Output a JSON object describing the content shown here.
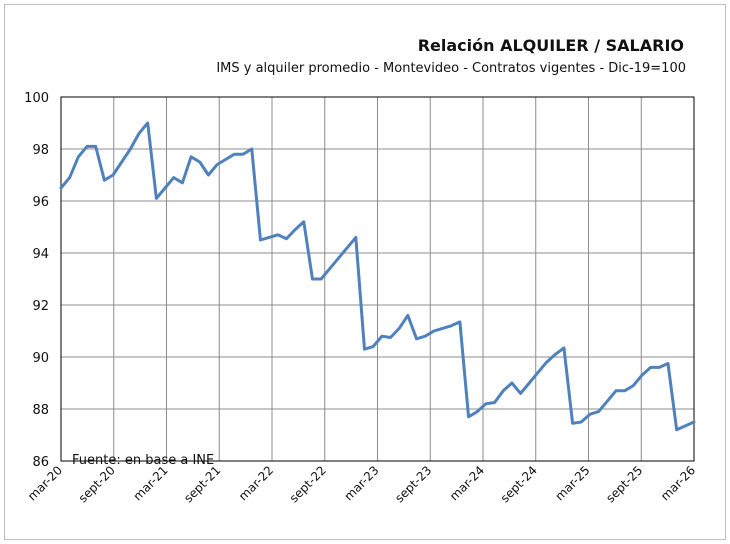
{
  "chart_data": {
    "type": "line",
    "title": "Relación  ALQUILER / SALARIO",
    "subtitle": "IMS y alquiler promedio - Montevideo - Contratos vigentes - Dic-19=100",
    "note": "Fuente: en base a INE",
    "ylim": [
      86,
      100
    ],
    "yticks": [
      "86",
      "88",
      "90",
      "92",
      "94",
      "96",
      "98",
      "100"
    ],
    "xtick_labels": [
      "mar-20",
      "sept-20",
      "mar-21",
      "sept-21",
      "mar-22",
      "sept-22",
      "mar-23",
      "sept-23",
      "mar-24",
      "sept-24",
      "mar-25",
      "sept-25",
      "mar-26"
    ],
    "grid": true,
    "line_color": "#4f81bd",
    "series": [
      {
        "values": [
          96.5,
          96.9,
          97.7,
          98.1,
          98.1,
          96.8,
          97.0,
          97.5,
          98.0,
          98.6,
          99.0,
          96.1,
          96.5,
          96.9,
          96.7,
          97.7,
          97.5,
          97.0,
          97.4,
          97.6,
          97.8,
          97.8,
          98.0,
          94.5,
          94.6,
          94.7,
          94.55,
          94.9,
          95.2,
          93.0,
          93.0,
          93.4,
          93.8,
          94.2,
          94.6,
          90.3,
          90.4,
          90.8,
          90.75,
          91.1,
          91.6,
          90.7,
          90.8,
          91.0,
          91.1,
          91.2,
          91.35,
          87.7,
          87.9,
          88.2,
          88.25,
          88.7,
          89.0,
          88.6,
          89.0,
          89.4,
          89.8,
          90.1,
          90.35,
          87.45,
          87.5,
          87.8,
          87.9,
          88.3,
          88.7,
          88.7,
          88.9,
          89.3,
          89.6,
          89.6,
          89.75,
          87.2,
          87.35,
          87.5
        ]
      }
    ]
  }
}
